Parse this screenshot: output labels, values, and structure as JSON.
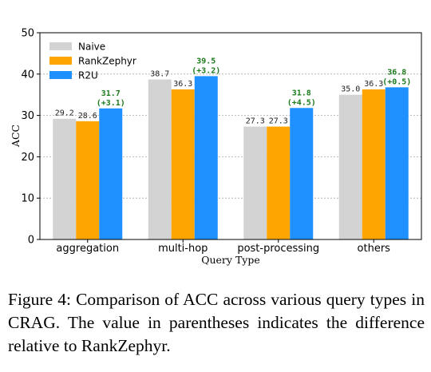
{
  "chart_data": {
    "type": "bar",
    "xlabel": "Query Type",
    "ylabel": "ACC",
    "ylim": [
      0,
      50
    ],
    "yticks": [
      "0",
      "10",
      "20",
      "30",
      "40",
      "50"
    ],
    "grid": "horizontal dashed",
    "legend_position": "top-left",
    "categories": [
      "aggregation",
      "multi-hop",
      "post-processing",
      "others"
    ],
    "series": [
      {
        "name": "Naive",
        "color": "#d3d3d3",
        "values": [
          29.2,
          38.7,
          27.3,
          35.0
        ],
        "labels": [
          "29.2",
          "38.7",
          "27.3",
          "35.0"
        ]
      },
      {
        "name": "RankZephyr",
        "color": "#ffa500",
        "values": [
          28.6,
          36.3,
          27.3,
          36.3
        ],
        "labels": [
          "28.6",
          "36.3",
          "27.3",
          "36.3"
        ]
      },
      {
        "name": "R2U",
        "color": "#1e90ff",
        "values": [
          31.7,
          39.5,
          31.8,
          36.8
        ],
        "labels": [
          "31.7",
          "39.5",
          "31.8",
          "36.8"
        ],
        "deltas": [
          "(+3.1)",
          "(+3.2)",
          "(+4.5)",
          "(+0.5)"
        ]
      }
    ]
  },
  "caption": "Figure 4:  Comparison of ACC across various query types in CRAG. The value in parentheses indicates the difference relative to RankZephyr."
}
